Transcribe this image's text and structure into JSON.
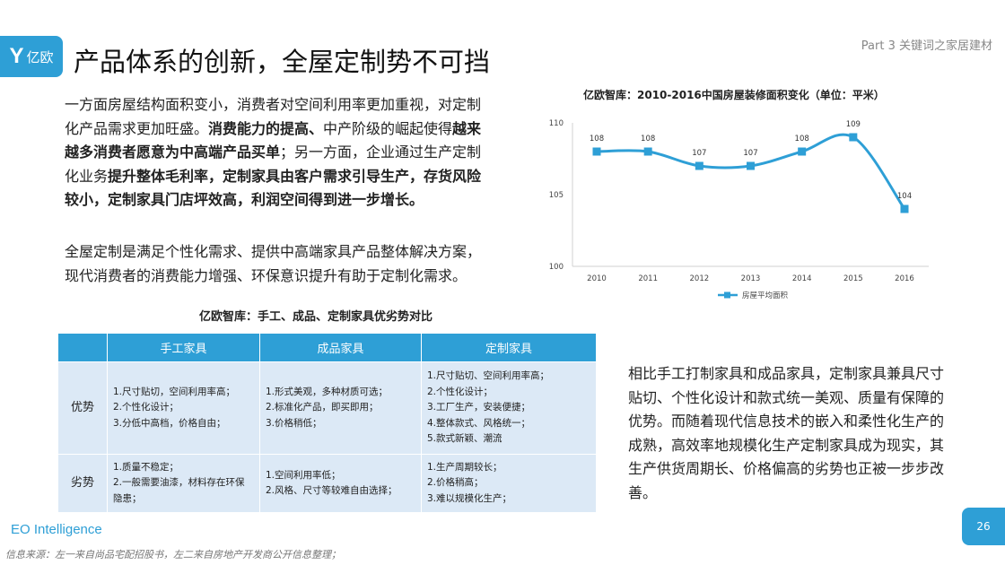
{
  "header": {
    "logo_text": "亿欧",
    "title": "产品体系的创新，全屋定制势不可挡",
    "part_label": "Part 3 关键词之家居建材"
  },
  "left_text": {
    "para1": [
      {
        "t": "一方面房屋结构面积变小，消费者对空间利用率更加重视，对定制化产品需求更加旺盛。",
        "b": false
      },
      {
        "t": "消费能力的提高、",
        "b": true
      },
      {
        "t": "中产阶级的崛起使得",
        "b": false
      },
      {
        "t": "越来越多消费者愿意为中高端产品买单",
        "b": true
      },
      {
        "t": "；另一方面，企业通过生产定制化业务",
        "b": false
      },
      {
        "t": "提升整体毛利率，定制家具由客户需求引导生产，存货风险较小，定制家具门店坪效高，利润空间得到进一步增长。",
        "b": true
      }
    ],
    "para2": "全屋定制是满足个性化需求、提供中高端家具产品整体解决方案，现代消费者的消费能力增强、环保意识提升有助于定制化需求。"
  },
  "chart_title": "亿欧智库：2010-2016中国房屋装修面积变化（单位：平米）",
  "chart_data": {
    "type": "line",
    "categories": [
      "2010",
      "2011",
      "2012",
      "2013",
      "2014",
      "2015",
      "2016"
    ],
    "series": [
      {
        "name": "房屋平均面积",
        "values": [
          108,
          108,
          107,
          107,
          108,
          109,
          104
        ],
        "color": "#2e9fd6"
      }
    ],
    "ylim": [
      100,
      110
    ],
    "yticks": [
      100,
      105,
      110
    ],
    "legend": "bottom",
    "grid": false,
    "data_labels": true,
    "smooth": true
  },
  "table_title": "亿欧智库：手工、成品、定制家具优劣势对比",
  "table": {
    "headers": [
      "",
      "手工家具",
      "成品家具",
      "定制家具"
    ],
    "rows": [
      {
        "label": "优势",
        "cells": [
          [
            "1.尺寸贴切，空间利用率高；",
            "2.个性化设计；",
            "3.分低中高档，价格自由；"
          ],
          [
            "1.形式美观，多种材质可选；",
            "2.标准化产品，即买即用；",
            "3.价格稍低；"
          ],
          [
            "1.尺寸贴切、空间利用率高；",
            "2.个性化设计；",
            "3.工厂生产，安装便捷；",
            "4.整体款式、风格统一；",
            "5.款式新颖、潮流"
          ]
        ]
      },
      {
        "label": "劣势",
        "cells": [
          [
            "1.质量不稳定；",
            "2.一般需要油漆，材料存在环保隐患；"
          ],
          [
            "1.空间利用率低；",
            "2.风格、尺寸等较难自由选择；"
          ],
          [
            "1.生产周期较长；",
            "2.价格稍高；",
            "3.难以规模化生产；"
          ]
        ]
      }
    ]
  },
  "right_text": "相比手工打制家具和成品家具，定制家具兼具尺寸贴切、个性化设计和款式统一美观、质量有保障的优势。而随着现代信息技术的嵌入和柔性化生产的成熟，高效率地规模化生产定制家具成为现实，其生产供货周期长、价格偏高的劣势也正被一步步改善。",
  "footer": {
    "brand": "EO Intelligence",
    "source": "信息来源：左一来自尚品宅配招股书，左二来自房地产开发商公开信息整理；",
    "page_number": "26"
  },
  "colors": {
    "accent": "#2e9fd6",
    "table_cell": "#dce9f6"
  }
}
